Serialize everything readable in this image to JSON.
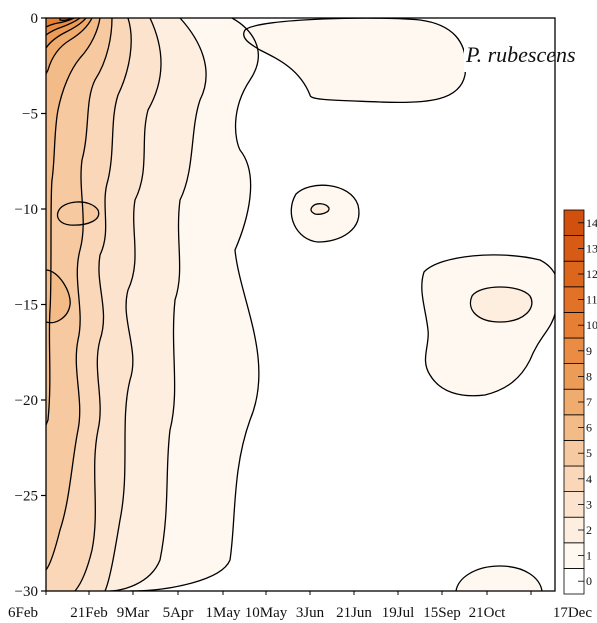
{
  "chart_data": {
    "type": "heatmap",
    "title": "P. rubescens",
    "xlabel": "",
    "ylabel": "",
    "x_categories": [
      "6Feb",
      "21Feb",
      "9Mar",
      "5Apr",
      "1May",
      "10May",
      "3Jun",
      "21Jun",
      "19Jul",
      "15Sep",
      "21Oct",
      "17Dec"
    ],
    "y_ticks": [
      0,
      -5,
      -10,
      -15,
      -20,
      -25,
      -30
    ],
    "ylim": [
      -30,
      0
    ],
    "colorbar": {
      "levels": [
        0,
        1,
        2,
        3,
        4,
        5,
        6,
        7,
        8,
        9,
        10,
        11,
        12,
        13,
        14
      ],
      "labels": [
        "0",
        "1",
        "2",
        "3",
        "4",
        "5",
        "6",
        "7",
        "8",
        "9",
        "10",
        "11",
        "12",
        "13",
        "14"
      ],
      "colors": [
        "#ffffff",
        "#fff8f1",
        "#fdeee0",
        "#fbe3cd",
        "#f9d7b8",
        "#f6c9a0",
        "#f3bb87",
        "#f0ab6e",
        "#ed9c57",
        "#ea8c44",
        "#e67e33",
        "#e27227",
        "#dd661d",
        "#d75b14",
        "#d1500d"
      ]
    },
    "regions": [
      {
        "label": "early-spring high concentration near surface",
        "x_range": [
          "6Feb",
          "5Apr"
        ],
        "depth_range": [
          0,
          -30
        ],
        "max_value": 14
      },
      {
        "label": "surface patch",
        "x_range": [
          "1May",
          "21Jun"
        ],
        "depth_range": [
          0,
          -4
        ],
        "value": 1
      },
      {
        "label": "mid-depth patch",
        "x_range": [
          "10May",
          "3Jun"
        ],
        "depth_range": [
          -9,
          -11.5
        ],
        "value": 1
      },
      {
        "label": "autumn metalimnion patch",
        "x_range": [
          "15Sep",
          "17Dec"
        ],
        "depth_range": [
          -12,
          -21
        ],
        "value": 1
      },
      {
        "label": "deep patch",
        "x_range": [
          "15Sep",
          "21Oct"
        ],
        "depth_range": [
          -28.5,
          -30
        ],
        "value": 1
      }
    ]
  }
}
